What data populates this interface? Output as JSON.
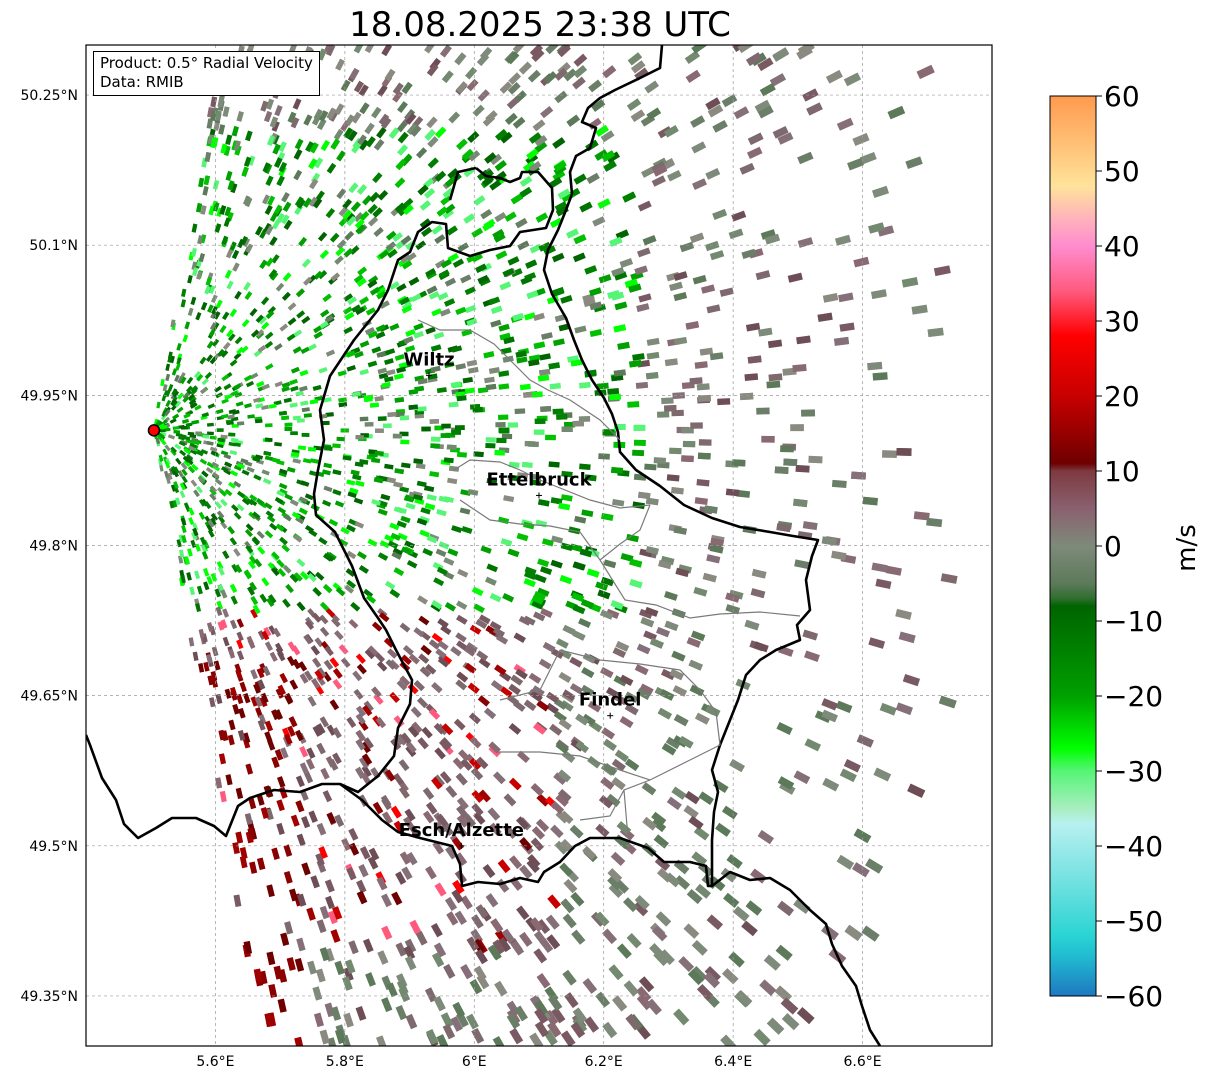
{
  "title": "18.08.2025 23:38 UTC",
  "info": {
    "product": "Product: 0.5° Radial Velocity",
    "data": "Data: RMIB"
  },
  "map": {
    "lon_range": [
      5.4,
      6.8
    ],
    "lat_range": [
      49.3,
      50.3
    ],
    "lon_ticks": [
      {
        "value": 5.6,
        "label": "5.6°E"
      },
      {
        "value": 5.8,
        "label": "5.8°E"
      },
      {
        "value": 6.0,
        "label": "6°E"
      },
      {
        "value": 6.2,
        "label": "6.2°E"
      },
      {
        "value": 6.4,
        "label": "6.4°E"
      },
      {
        "value": 6.6,
        "label": "6.6°E"
      }
    ],
    "lat_ticks": [
      {
        "value": 50.25,
        "label": "50.25°N"
      },
      {
        "value": 50.1,
        "label": "50.1°N"
      },
      {
        "value": 49.95,
        "label": "49.95°N"
      },
      {
        "value": 49.8,
        "label": "49.8°N"
      },
      {
        "value": 49.65,
        "label": "49.65°N"
      },
      {
        "value": 49.5,
        "label": "49.5°N"
      },
      {
        "value": 49.35,
        "label": "49.35°N"
      }
    ],
    "radar_site": {
      "lon": 5.505,
      "lat": 49.915
    },
    "cities": [
      {
        "name": "Wiltz",
        "lon": 5.93,
        "lat": 49.97
      },
      {
        "name": "Ettelbruck",
        "lon": 6.1,
        "lat": 49.85
      },
      {
        "name": "Findel",
        "lon": 6.21,
        "lat": 49.63
      },
      {
        "name": "Esch/Alzette",
        "lon": 5.98,
        "lat": 49.5
      }
    ]
  },
  "colorbar": {
    "label": "m/s",
    "vmin": -60,
    "vmax": 60,
    "ticks": [
      {
        "value": 60,
        "label": "60"
      },
      {
        "value": 50,
        "label": "50"
      },
      {
        "value": 40,
        "label": "40"
      },
      {
        "value": 30,
        "label": "30"
      },
      {
        "value": 20,
        "label": "20"
      },
      {
        "value": 10,
        "label": "10"
      },
      {
        "value": 0,
        "label": "0"
      },
      {
        "value": -10,
        "label": "−10"
      },
      {
        "value": -20,
        "label": "−20"
      },
      {
        "value": -30,
        "label": "−30"
      },
      {
        "value": -40,
        "label": "−40"
      },
      {
        "value": -50,
        "label": "−50"
      },
      {
        "value": -60,
        "label": "−60"
      }
    ],
    "stops": [
      {
        "value": 60,
        "color": "#ff9a4e"
      },
      {
        "value": 53,
        "color": "#ffc47a"
      },
      {
        "value": 48,
        "color": "#ffe39a"
      },
      {
        "value": 44,
        "color": "#ffb6b9"
      },
      {
        "value": 40,
        "color": "#ff8ccf"
      },
      {
        "value": 34,
        "color": "#ff5a7e"
      },
      {
        "value": 28,
        "color": "#ff0000"
      },
      {
        "value": 20,
        "color": "#c80000"
      },
      {
        "value": 11,
        "color": "#6e0000"
      },
      {
        "value": 10,
        "color": "#7e3a40"
      },
      {
        "value": 5,
        "color": "#8a6070"
      },
      {
        "value": 0,
        "color": "#7e8a7a"
      },
      {
        "value": -5,
        "color": "#5c7a5a"
      },
      {
        "value": -7,
        "color": "#2f6e2f"
      },
      {
        "value": -8,
        "color": "#006400"
      },
      {
        "value": -20,
        "color": "#00a000"
      },
      {
        "value": -27,
        "color": "#00ff00"
      },
      {
        "value": -30,
        "color": "#55f575"
      },
      {
        "value": -35,
        "color": "#a8eec0"
      },
      {
        "value": -37,
        "color": "#b8f0f0"
      },
      {
        "value": -45,
        "color": "#70e0e0"
      },
      {
        "value": -52,
        "color": "#2ad4d4"
      },
      {
        "value": -55,
        "color": "#20b8d0"
      },
      {
        "value": -60,
        "color": "#1e78c0"
      }
    ]
  }
}
